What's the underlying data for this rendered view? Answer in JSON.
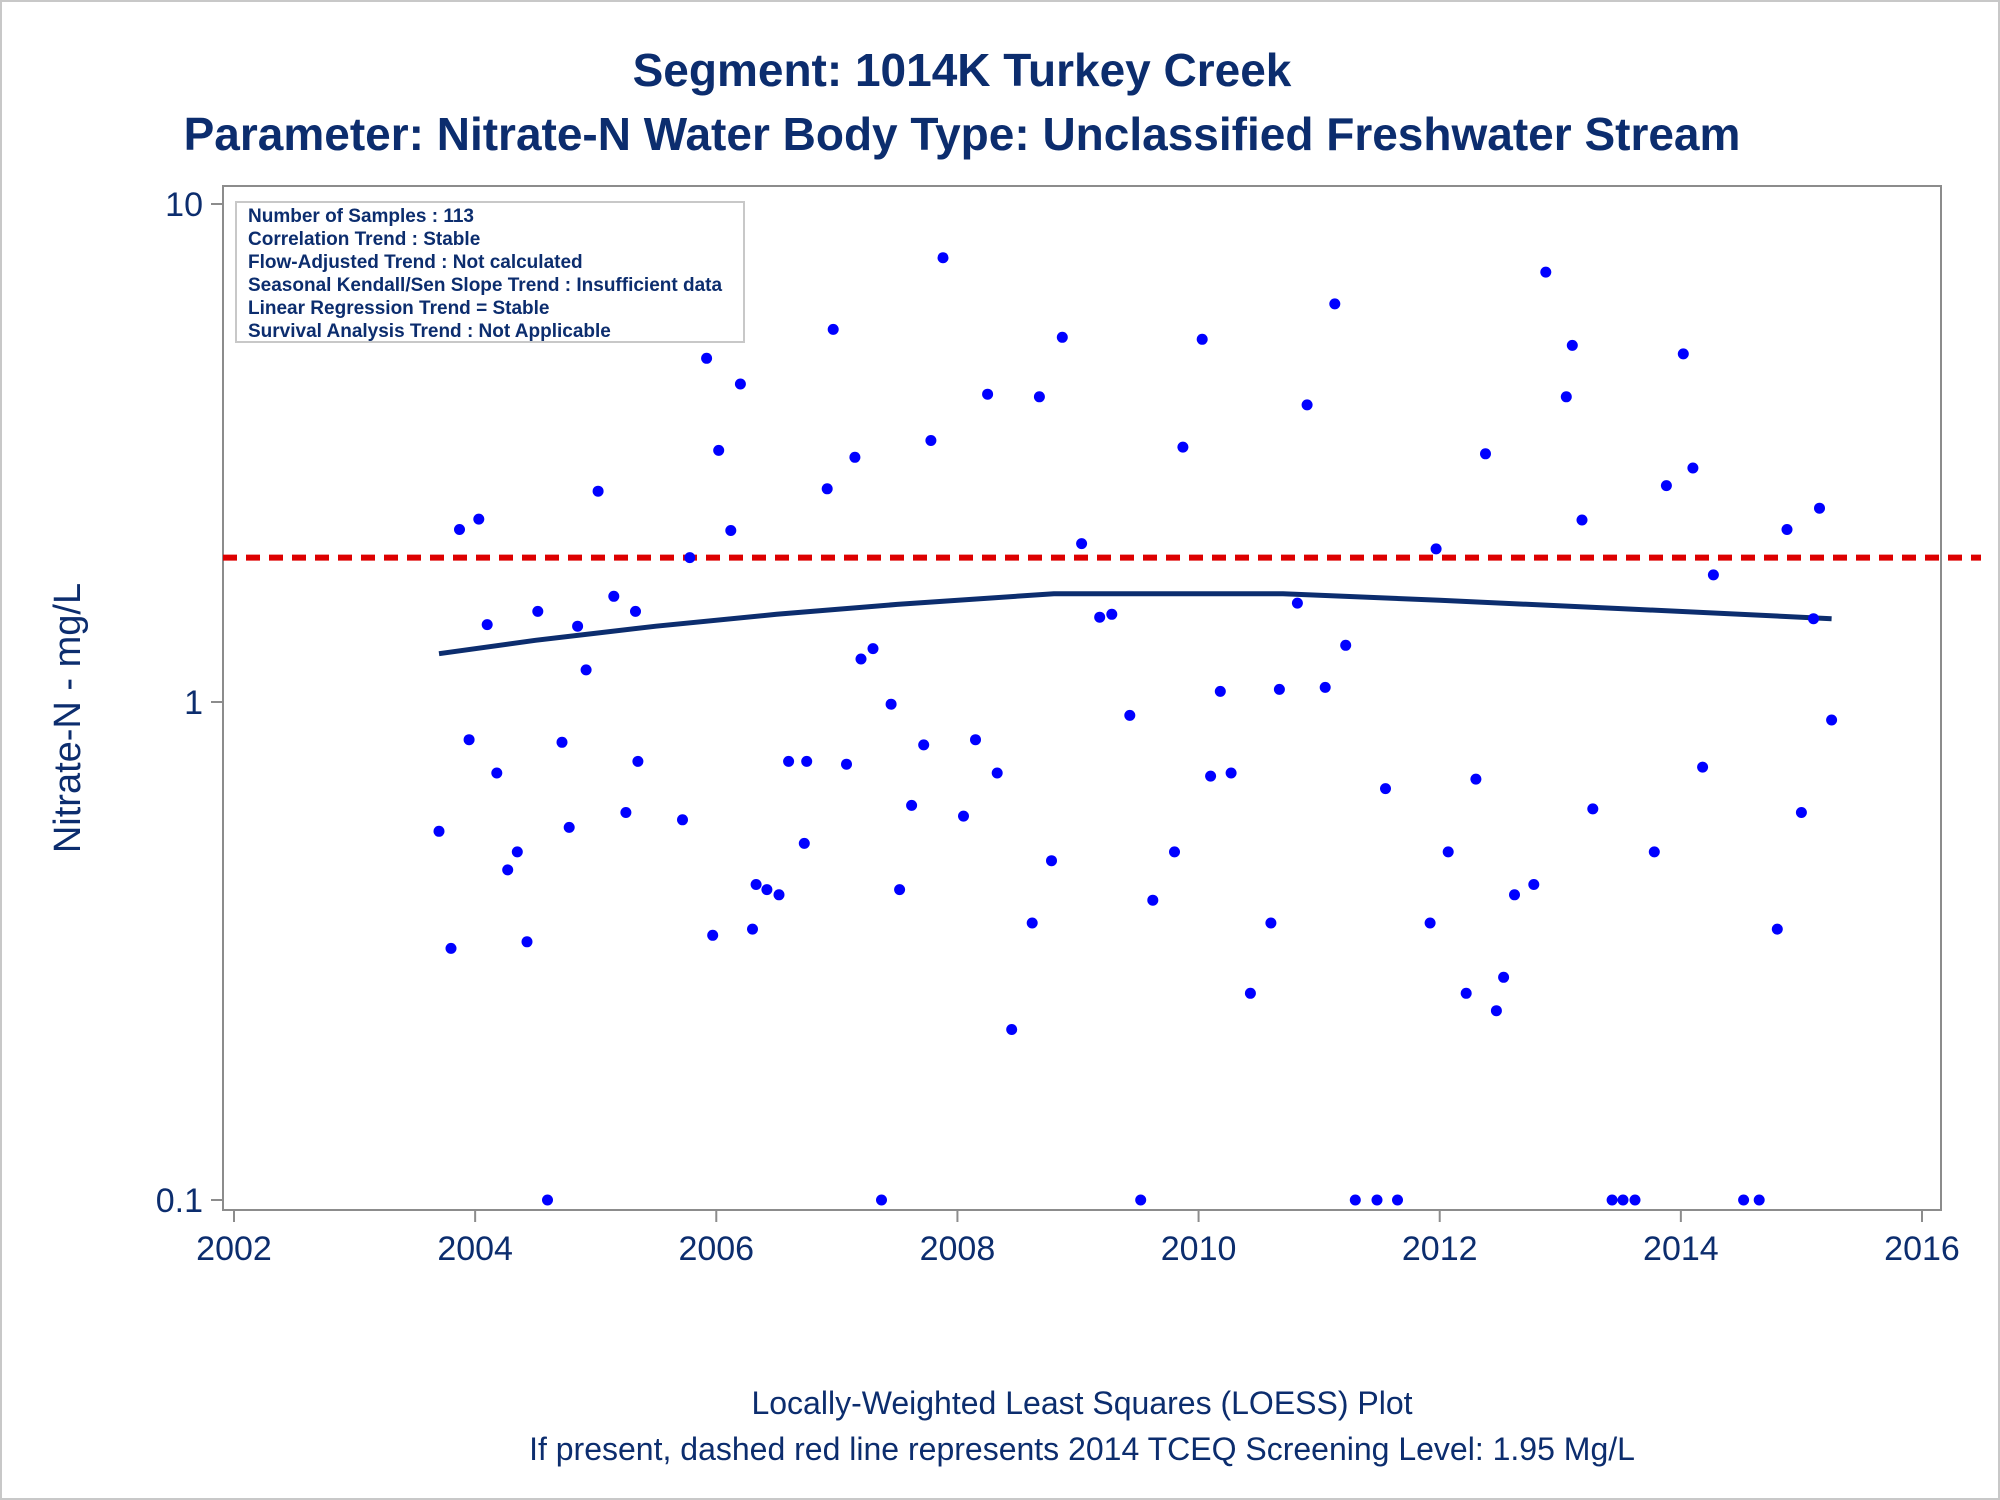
{
  "chart_data": {
    "type": "scatter",
    "title": "Segment: 1014K  Turkey Creek",
    "subtitle": "Parameter: Nitrate-N   Water Body Type: Unclassified Freshwater Stream",
    "xlabel": "",
    "ylabel": "Nitrate-N - mg/L",
    "y_scale": "log",
    "xlim": [
      2002,
      2016
    ],
    "ylim": [
      0.1,
      10
    ],
    "x_ticks": [
      2002,
      2004,
      2006,
      2008,
      2010,
      2012,
      2014,
      2016
    ],
    "y_ticks": [
      {
        "value": 0.1,
        "label": "0.1"
      },
      {
        "value": 1,
        "label": "1"
      },
      {
        "value": 10,
        "label": "10"
      }
    ],
    "grid": false,
    "stats_box": [
      "Number of Samples : 113",
      "Correlation Trend : Stable",
      "Flow-Adjusted Trend : Not calculated",
      "Seasonal Kendall/Sen Slope Trend : Insufficient data",
      "Linear Regression Trend = Stable",
      "Survival Analysis Trend : Not Applicable"
    ],
    "footnotes": [
      "Locally-Weighted Least Squares (LOESS) Plot",
      "If present, dashed red line represents 2014 TCEQ Screening Level: 1.95 Mg/L"
    ],
    "screening_level": 1.95,
    "colors": {
      "points": "#0000ff",
      "loess": "#0c2d6e",
      "screening": "#dd0000",
      "text": "#0c2d6e",
      "frame": "#8c8c8c"
    },
    "points": [
      {
        "x": 2003.7,
        "y": 0.55
      },
      {
        "x": 2003.8,
        "y": 0.32
      },
      {
        "x": 2003.87,
        "y": 2.22
      },
      {
        "x": 2003.95,
        "y": 0.84
      },
      {
        "x": 2004.03,
        "y": 2.33
      },
      {
        "x": 2004.1,
        "y": 1.43
      },
      {
        "x": 2004.18,
        "y": 0.72
      },
      {
        "x": 2004.27,
        "y": 0.46
      },
      {
        "x": 2004.35,
        "y": 0.5
      },
      {
        "x": 2004.43,
        "y": 0.33
      },
      {
        "x": 2004.52,
        "y": 1.52
      },
      {
        "x": 2004.6,
        "y": 0.1
      },
      {
        "x": 2004.72,
        "y": 0.83
      },
      {
        "x": 2004.78,
        "y": 0.56
      },
      {
        "x": 2004.85,
        "y": 1.42
      },
      {
        "x": 2004.92,
        "y": 1.16
      },
      {
        "x": 2005.02,
        "y": 2.65
      },
      {
        "x": 2005.15,
        "y": 1.63
      },
      {
        "x": 2005.25,
        "y": 0.6
      },
      {
        "x": 2005.33,
        "y": 1.52
      },
      {
        "x": 2005.35,
        "y": 0.76
      },
      {
        "x": 2005.72,
        "y": 0.58
      },
      {
        "x": 2005.78,
        "y": 1.95
      },
      {
        "x": 2005.92,
        "y": 4.9
      },
      {
        "x": 2005.97,
        "y": 0.34
      },
      {
        "x": 2006.02,
        "y": 3.2
      },
      {
        "x": 2006.12,
        "y": 2.21
      },
      {
        "x": 2006.2,
        "y": 4.35
      },
      {
        "x": 2006.3,
        "y": 0.35
      },
      {
        "x": 2006.33,
        "y": 0.43
      },
      {
        "x": 2006.42,
        "y": 0.42
      },
      {
        "x": 2006.52,
        "y": 0.41
      },
      {
        "x": 2006.6,
        "y": 0.76
      },
      {
        "x": 2006.73,
        "y": 0.52
      },
      {
        "x": 2006.75,
        "y": 0.76
      },
      {
        "x": 2006.92,
        "y": 2.68
      },
      {
        "x": 2006.97,
        "y": 5.6
      },
      {
        "x": 2007.08,
        "y": 0.75
      },
      {
        "x": 2007.15,
        "y": 3.1
      },
      {
        "x": 2007.2,
        "y": 1.22
      },
      {
        "x": 2007.3,
        "y": 1.28
      },
      {
        "x": 2007.37,
        "y": 0.1
      },
      {
        "x": 2007.45,
        "y": 0.99
      },
      {
        "x": 2007.52,
        "y": 0.42
      },
      {
        "x": 2007.62,
        "y": 0.62
      },
      {
        "x": 2007.72,
        "y": 0.82
      },
      {
        "x": 2007.78,
        "y": 3.35
      },
      {
        "x": 2007.88,
        "y": 7.8
      },
      {
        "x": 2008.05,
        "y": 0.59
      },
      {
        "x": 2008.15,
        "y": 0.84
      },
      {
        "x": 2008.25,
        "y": 4.15
      },
      {
        "x": 2008.33,
        "y": 0.72
      },
      {
        "x": 2008.45,
        "y": 0.22
      },
      {
        "x": 2008.62,
        "y": 0.36
      },
      {
        "x": 2008.68,
        "y": 4.1
      },
      {
        "x": 2008.78,
        "y": 0.48
      },
      {
        "x": 2008.87,
        "y": 5.4
      },
      {
        "x": 2009.03,
        "y": 2.08
      },
      {
        "x": 2009.18,
        "y": 1.48
      },
      {
        "x": 2009.28,
        "y": 1.5
      },
      {
        "x": 2009.43,
        "y": 0.94
      },
      {
        "x": 2009.52,
        "y": 0.1
      },
      {
        "x": 2009.62,
        "y": 0.4
      },
      {
        "x": 2009.8,
        "y": 0.5
      },
      {
        "x": 2009.87,
        "y": 3.25
      },
      {
        "x": 2010.03,
        "y": 5.35
      },
      {
        "x": 2010.1,
        "y": 0.71
      },
      {
        "x": 2010.18,
        "y": 1.05
      },
      {
        "x": 2010.27,
        "y": 0.72
      },
      {
        "x": 2010.43,
        "y": 0.26
      },
      {
        "x": 2010.6,
        "y": 0.36
      },
      {
        "x": 2010.67,
        "y": 1.06
      },
      {
        "x": 2010.82,
        "y": 1.58
      },
      {
        "x": 2010.9,
        "y": 3.95
      },
      {
        "x": 2011.05,
        "y": 1.07
      },
      {
        "x": 2011.13,
        "y": 6.3
      },
      {
        "x": 2011.22,
        "y": 1.3
      },
      {
        "x": 2011.3,
        "y": 0.1
      },
      {
        "x": 2011.48,
        "y": 0.1
      },
      {
        "x": 2011.55,
        "y": 0.67
      },
      {
        "x": 2011.65,
        "y": 0.1
      },
      {
        "x": 2011.92,
        "y": 0.36
      },
      {
        "x": 2011.97,
        "y": 2.03
      },
      {
        "x": 2012.07,
        "y": 0.5
      },
      {
        "x": 2012.22,
        "y": 0.26
      },
      {
        "x": 2012.3,
        "y": 0.7
      },
      {
        "x": 2012.38,
        "y": 3.15
      },
      {
        "x": 2012.47,
        "y": 0.24
      },
      {
        "x": 2012.53,
        "y": 0.28
      },
      {
        "x": 2012.62,
        "y": 0.41
      },
      {
        "x": 2012.78,
        "y": 0.43
      },
      {
        "x": 2012.88,
        "y": 7.3
      },
      {
        "x": 2013.05,
        "y": 4.1
      },
      {
        "x": 2013.1,
        "y": 5.2
      },
      {
        "x": 2013.18,
        "y": 2.32
      },
      {
        "x": 2013.27,
        "y": 0.61
      },
      {
        "x": 2013.43,
        "y": 0.1
      },
      {
        "x": 2013.52,
        "y": 0.1
      },
      {
        "x": 2013.62,
        "y": 0.1
      },
      {
        "x": 2013.78,
        "y": 0.5
      },
      {
        "x": 2013.88,
        "y": 2.72
      },
      {
        "x": 2014.02,
        "y": 5.0
      },
      {
        "x": 2014.1,
        "y": 2.95
      },
      {
        "x": 2014.18,
        "y": 0.74
      },
      {
        "x": 2014.27,
        "y": 1.8
      },
      {
        "x": 2014.52,
        "y": 0.1
      },
      {
        "x": 2014.65,
        "y": 0.1
      },
      {
        "x": 2014.8,
        "y": 0.35
      },
      {
        "x": 2014.88,
        "y": 2.22
      },
      {
        "x": 2015.0,
        "y": 0.6
      },
      {
        "x": 2015.1,
        "y": 1.47
      },
      {
        "x": 2015.15,
        "y": 2.45
      },
      {
        "x": 2015.25,
        "y": 0.92
      }
    ],
    "loess": [
      {
        "x": 2003.7,
        "y": 1.25
      },
      {
        "x": 2004.5,
        "y": 1.33
      },
      {
        "x": 2005.5,
        "y": 1.42
      },
      {
        "x": 2006.5,
        "y": 1.5
      },
      {
        "x": 2007.5,
        "y": 1.57
      },
      {
        "x": 2008.8,
        "y": 1.65
      },
      {
        "x": 2010.7,
        "y": 1.65
      },
      {
        "x": 2012.0,
        "y": 1.6
      },
      {
        "x": 2013.5,
        "y": 1.54
      },
      {
        "x": 2015.25,
        "y": 1.47
      }
    ]
  }
}
